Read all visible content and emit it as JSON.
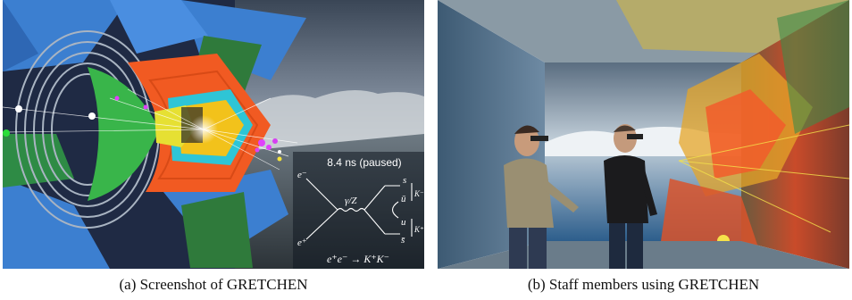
{
  "figure": {
    "panel_a": {
      "caption": "(a) Screenshot of GRETCHEN",
      "time_readout": "8.4 ns (paused)",
      "diagram": {
        "in_top": "e⁻",
        "in_bottom": "e⁺",
        "boson": "γ/Z",
        "out_1": "s",
        "out_2": "ū",
        "out_3": "u",
        "out_4": "s̄",
        "meson_top": "K⁻",
        "meson_bottom": "K⁺",
        "process": "e⁺e⁻ → K⁺K⁻"
      }
    },
    "panel_b": {
      "caption": "(b) Staff members using GRETCHEN"
    }
  }
}
